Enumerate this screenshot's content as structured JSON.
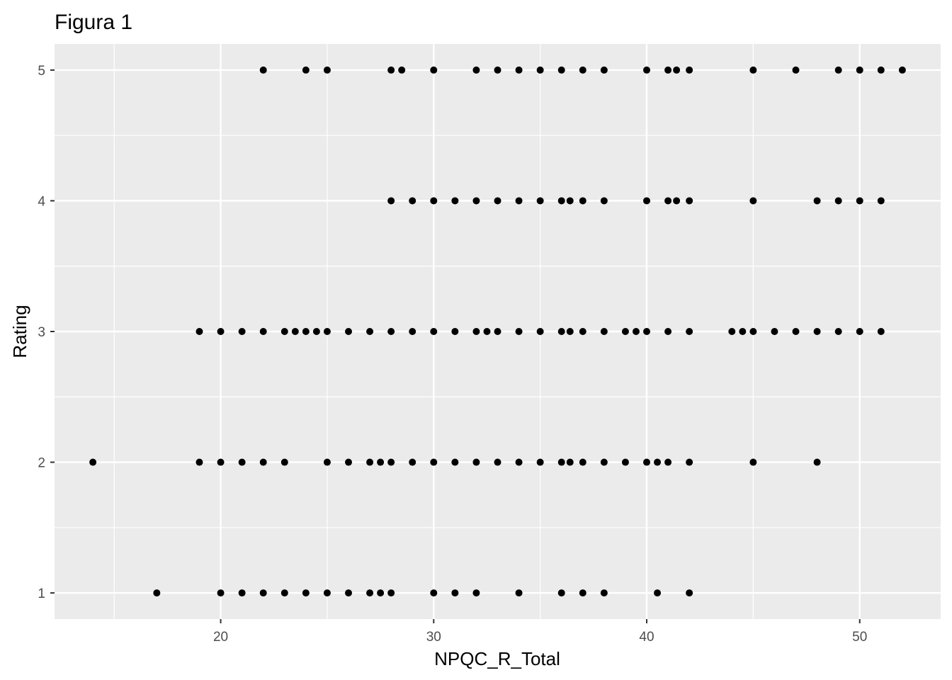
{
  "chart_data": {
    "type": "scatter",
    "title": "Figura 1",
    "xlabel": "NPQC_R_Total",
    "ylabel": "Rating",
    "xlim": [
      12.2,
      53.8
    ],
    "ylim": [
      0.8,
      5.2
    ],
    "x_ticks": [
      20,
      30,
      40,
      50
    ],
    "y_ticks": [
      1,
      2,
      3,
      4,
      5
    ],
    "x_minor_ticks": [
      15,
      25,
      35,
      45
    ],
    "y_minor_ticks": [
      1.5,
      2.5,
      3.5,
      4.5
    ],
    "grid": true,
    "panel_background": "#ebebeb",
    "grid_color": "#ffffff",
    "point_color": "#000000",
    "series": [
      {
        "points": [
          [
            22,
            5
          ],
          [
            24,
            5
          ],
          [
            25,
            5
          ],
          [
            28,
            5
          ],
          [
            28.5,
            5
          ],
          [
            30,
            5
          ],
          [
            32,
            5
          ],
          [
            33,
            5
          ],
          [
            34,
            5
          ],
          [
            35,
            5
          ],
          [
            36,
            5
          ],
          [
            37,
            5
          ],
          [
            38,
            5
          ],
          [
            40,
            5
          ],
          [
            41,
            5
          ],
          [
            41.4,
            5
          ],
          [
            42,
            5
          ],
          [
            45,
            5
          ],
          [
            47,
            5
          ],
          [
            49,
            5
          ],
          [
            50,
            5
          ],
          [
            51,
            5
          ],
          [
            52,
            5
          ],
          [
            28,
            4
          ],
          [
            29,
            4
          ],
          [
            30,
            4
          ],
          [
            31,
            4
          ],
          [
            32,
            4
          ],
          [
            33,
            4
          ],
          [
            34,
            4
          ],
          [
            35,
            4
          ],
          [
            36,
            4
          ],
          [
            36.4,
            4
          ],
          [
            37,
            4
          ],
          [
            38,
            4
          ],
          [
            40,
            4
          ],
          [
            41,
            4
          ],
          [
            41.4,
            4
          ],
          [
            42,
            4
          ],
          [
            45,
            4
          ],
          [
            48,
            4
          ],
          [
            49,
            4
          ],
          [
            50,
            4
          ],
          [
            51,
            4
          ],
          [
            19,
            3
          ],
          [
            20,
            3
          ],
          [
            21,
            3
          ],
          [
            22,
            3
          ],
          [
            23,
            3
          ],
          [
            23.5,
            3
          ],
          [
            24,
            3
          ],
          [
            24.5,
            3
          ],
          [
            25,
            3
          ],
          [
            26,
            3
          ],
          [
            27,
            3
          ],
          [
            28,
            3
          ],
          [
            29,
            3
          ],
          [
            30,
            3
          ],
          [
            31,
            3
          ],
          [
            32,
            3
          ],
          [
            32.5,
            3
          ],
          [
            33,
            3
          ],
          [
            34,
            3
          ],
          [
            35,
            3
          ],
          [
            36,
            3
          ],
          [
            36.4,
            3
          ],
          [
            37,
            3
          ],
          [
            38,
            3
          ],
          [
            39,
            3
          ],
          [
            39.5,
            3
          ],
          [
            40,
            3
          ],
          [
            41,
            3
          ],
          [
            42,
            3
          ],
          [
            44,
            3
          ],
          [
            44.5,
            3
          ],
          [
            45,
            3
          ],
          [
            46,
            3
          ],
          [
            47,
            3
          ],
          [
            48,
            3
          ],
          [
            49,
            3
          ],
          [
            50,
            3
          ],
          [
            51,
            3
          ],
          [
            14,
            2
          ],
          [
            19,
            2
          ],
          [
            20,
            2
          ],
          [
            21,
            2
          ],
          [
            22,
            2
          ],
          [
            23,
            2
          ],
          [
            25,
            2
          ],
          [
            26,
            2
          ],
          [
            27,
            2
          ],
          [
            27.5,
            2
          ],
          [
            28,
            2
          ],
          [
            29,
            2
          ],
          [
            30,
            2
          ],
          [
            31,
            2
          ],
          [
            32,
            2
          ],
          [
            33,
            2
          ],
          [
            34,
            2
          ],
          [
            35,
            2
          ],
          [
            36,
            2
          ],
          [
            36.4,
            2
          ],
          [
            37,
            2
          ],
          [
            38,
            2
          ],
          [
            39,
            2
          ],
          [
            40,
            2
          ],
          [
            40.5,
            2
          ],
          [
            41,
            2
          ],
          [
            42,
            2
          ],
          [
            45,
            2
          ],
          [
            48,
            2
          ],
          [
            17,
            1
          ],
          [
            20,
            1
          ],
          [
            21,
            1
          ],
          [
            22,
            1
          ],
          [
            23,
            1
          ],
          [
            24,
            1
          ],
          [
            25,
            1
          ],
          [
            26,
            1
          ],
          [
            27,
            1
          ],
          [
            27.5,
            1
          ],
          [
            28,
            1
          ],
          [
            30,
            1
          ],
          [
            31,
            1
          ],
          [
            32,
            1
          ],
          [
            34,
            1
          ],
          [
            36,
            1
          ],
          [
            37,
            1
          ],
          [
            38,
            1
          ],
          [
            40.5,
            1
          ],
          [
            42,
            1
          ]
        ]
      }
    ]
  }
}
